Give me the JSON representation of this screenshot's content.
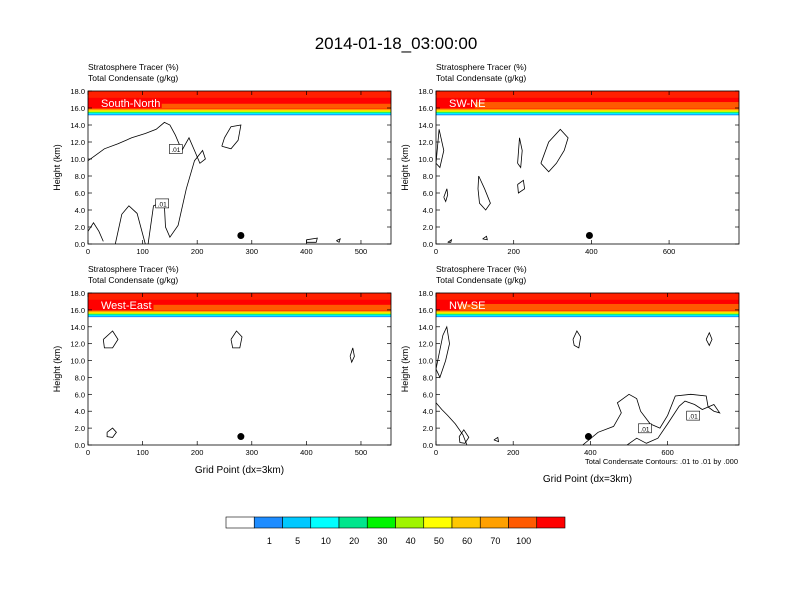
{
  "page": {
    "title": "2014-01-18_03:00:00",
    "footnote": "Total Condensate Contours: .01 to .01 by .000",
    "colors": {
      "background": "#ffffff",
      "contour": "#000000"
    }
  },
  "colorbar": {
    "colors": [
      "#ffffff",
      "#1e8cff",
      "#00c8ff",
      "#00ffff",
      "#00e68c",
      "#00f500",
      "#a0f500",
      "#ffff00",
      "#ffc800",
      "#ffa000",
      "#ff5a00",
      "#ff0000"
    ],
    "labels": [
      "1",
      "5",
      "10",
      "20",
      "30",
      "40",
      "50",
      "60",
      "70",
      "100"
    ]
  },
  "chart_data": [
    {
      "type": "heatmap",
      "label": "South-North",
      "title_left": "Stratosphere Tracer",
      "title_left_unit": "(%)",
      "title_left2": "Total Condensate",
      "title_left2_unit": "(g/kg)",
      "ylabel": "Height (km)",
      "xlabel": "",
      "xlim": [
        0,
        555
      ],
      "ylim": [
        0,
        18
      ],
      "xticks": [
        "0",
        "100",
        "200",
        "300",
        "400",
        "500"
      ],
      "xtick_values": [
        0,
        100,
        200,
        300,
        400,
        500
      ],
      "yticks": [
        "0.0",
        "2.0",
        "4.0",
        "6.0",
        "8.0",
        "10.0",
        "12.0",
        "14.0",
        "16.0",
        "18.0"
      ],
      "tracer_base_km": 15.2,
      "tracer_jump_at": 135,
      "tracer_jump_km": 0.4,
      "marker": {
        "x": 280,
        "y": 1.0
      },
      "contour_labels": [
        {
          "text": ".01",
          "x": 160,
          "y": 11.0
        },
        {
          "text": ".01",
          "x": 135,
          "y": 4.6
        }
      ],
      "contours": [
        [
          [
            0,
            1.5
          ],
          [
            10,
            2.5
          ],
          [
            20,
            1.5
          ],
          [
            28,
            0.3
          ]
        ],
        [
          [
            50,
            0
          ],
          [
            62,
            3.5
          ],
          [
            75,
            4.5
          ],
          [
            90,
            3.6
          ],
          [
            105,
            0
          ]
        ],
        [
          [
            110,
            0
          ],
          [
            120,
            4.5
          ],
          [
            132,
            4.8
          ],
          [
            140,
            4.5
          ],
          [
            142,
            2.0
          ],
          [
            150,
            0.8
          ],
          [
            165,
            2.2
          ],
          [
            180,
            6.5
          ],
          [
            195,
            9.8
          ],
          [
            210,
            11.0
          ],
          [
            215,
            10.0
          ],
          [
            205,
            9.5
          ],
          [
            195,
            11.0
          ],
          [
            185,
            12.5
          ],
          [
            172,
            11.0
          ],
          [
            160,
            12.8
          ],
          [
            150,
            14.0
          ],
          [
            140,
            14.3
          ],
          [
            125,
            13.5
          ],
          [
            105,
            13.0
          ],
          [
            80,
            12.5
          ],
          [
            55,
            11.8
          ],
          [
            30,
            11.2
          ],
          [
            15,
            10.5
          ],
          [
            0,
            9.8
          ]
        ],
        [
          [
            245,
            11.5
          ],
          [
            250,
            12.5
          ],
          [
            262,
            13.8
          ],
          [
            280,
            14.0
          ],
          [
            275,
            12.2
          ],
          [
            262,
            11.2
          ],
          [
            245,
            11.5
          ]
        ],
        [
          [
            400,
            0.5
          ],
          [
            420,
            0.7
          ],
          [
            418,
            0.2
          ],
          [
            400,
            0.2
          ],
          [
            400,
            0.5
          ]
        ],
        [
          [
            455,
            0.4
          ],
          [
            462,
            0.6
          ],
          [
            460,
            0.2
          ],
          [
            455,
            0.4
          ]
        ]
      ]
    },
    {
      "type": "heatmap",
      "label": "SW-NE",
      "title_left": "Stratosphere Tracer",
      "title_left_unit": "(%)",
      "title_left2": "Total Condensate",
      "title_left2_unit": "(g/kg)",
      "ylabel": "Height (km)",
      "xlabel": "",
      "xlim": [
        0,
        780
      ],
      "ylim": [
        0,
        18
      ],
      "xticks": [
        "0",
        "200",
        "400",
        "600"
      ],
      "xtick_values": [
        0,
        200,
        400,
        600
      ],
      "yticks": [
        "0.0",
        "2.0",
        "4.0",
        "6.0",
        "8.0",
        "10.0",
        "12.0",
        "14.0",
        "16.0",
        "18.0"
      ],
      "tracer_base_km": 15.2,
      "tracer_jump_at": 100,
      "tracer_jump_km": 0.6,
      "marker": {
        "x": 395,
        "y": 1.0
      },
      "contour_labels": [],
      "contours": [
        [
          [
            0,
            9.5
          ],
          [
            8,
            13.5
          ],
          [
            20,
            11.0
          ],
          [
            10,
            9.0
          ],
          [
            0,
            9.5
          ]
        ],
        [
          [
            20,
            5.5
          ],
          [
            28,
            6.5
          ],
          [
            30,
            5.8
          ],
          [
            25,
            5.0
          ],
          [
            20,
            5.5
          ]
        ],
        [
          [
            110,
            8.0
          ],
          [
            125,
            6.5
          ],
          [
            140,
            4.8
          ],
          [
            128,
            4.0
          ],
          [
            112,
            4.8
          ],
          [
            108,
            6.5
          ],
          [
            110,
            8.0
          ]
        ],
        [
          [
            210,
            9.5
          ],
          [
            215,
            12.5
          ],
          [
            222,
            11.0
          ],
          [
            218,
            9.0
          ],
          [
            210,
            9.5
          ]
        ],
        [
          [
            210,
            7.0
          ],
          [
            225,
            7.5
          ],
          [
            228,
            6.5
          ],
          [
            212,
            6.0
          ],
          [
            210,
            7.0
          ]
        ],
        [
          [
            270,
            9.5
          ],
          [
            290,
            12.0
          ],
          [
            320,
            13.5
          ],
          [
            340,
            12.5
          ],
          [
            330,
            11.0
          ],
          [
            310,
            9.5
          ],
          [
            290,
            8.5
          ],
          [
            270,
            9.5
          ]
        ],
        [
          [
            120,
            0.6
          ],
          [
            130,
            0.9
          ],
          [
            132,
            0.5
          ],
          [
            120,
            0.6
          ]
        ],
        [
          [
            30,
            0.2
          ],
          [
            40,
            0.5
          ],
          [
            38,
            0.2
          ],
          [
            30,
            0.2
          ]
        ]
      ]
    },
    {
      "type": "heatmap",
      "label": "West-East",
      "title_left": "Stratosphere Tracer",
      "title_left_unit": "(%)",
      "title_left2": "Total Condensate",
      "title_left2_unit": "(g/kg)",
      "ylabel": "Height (km)",
      "xlabel": "Grid Point (dx=3km)",
      "xlim": [
        0,
        555
      ],
      "ylim": [
        0,
        18
      ],
      "xticks": [
        "0",
        "100",
        "200",
        "300",
        "400",
        "500"
      ],
      "xtick_values": [
        0,
        100,
        200,
        300,
        400,
        500
      ],
      "yticks": [
        "0.0",
        "2.0",
        "4.0",
        "6.0",
        "8.0",
        "10.0",
        "12.0",
        "14.0",
        "16.0",
        "18.0"
      ],
      "tracer_base_km": 15.2,
      "tracer_jump_at": 120,
      "tracer_jump_km": 0.5,
      "marker": {
        "x": 280,
        "y": 1.0
      },
      "contour_labels": [],
      "contours": [
        [
          [
            262,
            12.5
          ],
          [
            272,
            13.5
          ],
          [
            282,
            12.8
          ],
          [
            278,
            11.5
          ],
          [
            265,
            11.5
          ],
          [
            262,
            12.5
          ]
        ],
        [
          [
            28,
            12.5
          ],
          [
            45,
            13.5
          ],
          [
            55,
            12.5
          ],
          [
            45,
            11.5
          ],
          [
            30,
            11.5
          ],
          [
            28,
            12.5
          ]
        ],
        [
          [
            480,
            10.5
          ],
          [
            485,
            11.5
          ],
          [
            488,
            10.5
          ],
          [
            483,
            9.8
          ],
          [
            480,
            10.5
          ]
        ],
        [
          [
            35,
            1.5
          ],
          [
            45,
            2.0
          ],
          [
            52,
            1.5
          ],
          [
            45,
            0.9
          ],
          [
            35,
            1.0
          ],
          [
            35,
            1.5
          ]
        ]
      ]
    },
    {
      "type": "heatmap",
      "label": "NW-SE",
      "title_left": "Stratosphere Tracer",
      "title_left_unit": "(%)",
      "title_left2": "Total Condensate",
      "title_left2_unit": "(g/kg)",
      "ylabel": "Height (km)",
      "xlabel": "Grid Point (dx=3km)",
      "xlim": [
        0,
        785
      ],
      "ylim": [
        0,
        18
      ],
      "xticks": [
        "0",
        "200",
        "400",
        "600"
      ],
      "xtick_values": [
        0,
        200,
        400,
        600
      ],
      "yticks": [
        "0.0",
        "2.0",
        "4.0",
        "6.0",
        "8.0",
        "10.0",
        "12.0",
        "14.0",
        "16.0",
        "18.0"
      ],
      "tracer_base_km": 15.2,
      "tracer_jump_at": 60,
      "tracer_jump_km": 0.6,
      "marker": {
        "x": 395,
        "y": 1.0
      },
      "contour_labels": [
        {
          "text": ".01",
          "x": 540,
          "y": 1.8
        },
        {
          "text": ".01",
          "x": 665,
          "y": 3.3
        }
      ],
      "contours": [
        [
          [
            0,
            9.0
          ],
          [
            18,
            13.0
          ],
          [
            28,
            14.0
          ],
          [
            35,
            12.0
          ],
          [
            25,
            10.0
          ],
          [
            10,
            8.0
          ],
          [
            0,
            9.0
          ]
        ],
        [
          [
            0,
            5.0
          ],
          [
            15,
            4.2
          ],
          [
            30,
            3.5
          ],
          [
            50,
            2.5
          ],
          [
            70,
            1.2
          ],
          [
            80,
            0
          ]
        ],
        [
          [
            60,
            1.0
          ],
          [
            72,
            1.8
          ],
          [
            85,
            0.9
          ],
          [
            75,
            0.2
          ],
          [
            62,
            0.3
          ],
          [
            60,
            1.0
          ]
        ],
        [
          [
            150,
            0.6
          ],
          [
            160,
            0.9
          ],
          [
            162,
            0.4
          ],
          [
            150,
            0.6
          ]
        ],
        [
          [
            380,
            0
          ],
          [
            420,
            1.5
          ],
          [
            460,
            2.2
          ],
          [
            480,
            3.8
          ],
          [
            470,
            5.0
          ],
          [
            500,
            6.0
          ],
          [
            520,
            5.5
          ],
          [
            530,
            4.0
          ],
          [
            555,
            2.5
          ],
          [
            580,
            2.0
          ],
          [
            600,
            3.5
          ],
          [
            620,
            5.8
          ],
          [
            660,
            6.0
          ],
          [
            700,
            5.8
          ],
          [
            705,
            4.5
          ],
          [
            720,
            4.0
          ],
          [
            735,
            3.8
          ],
          [
            720,
            4.8
          ],
          [
            690,
            4.2
          ],
          [
            670,
            4.8
          ],
          [
            645,
            5.2
          ],
          [
            630,
            4.6
          ],
          [
            600,
            2.5
          ],
          [
            575,
            0.8
          ],
          [
            545,
            0.2
          ],
          [
            520,
            0.8
          ],
          [
            495,
            0
          ]
        ],
        [
          [
            355,
            12.5
          ],
          [
            365,
            13.5
          ],
          [
            375,
            12.8
          ],
          [
            370,
            11.5
          ],
          [
            358,
            11.8
          ],
          [
            355,
            12.5
          ]
        ],
        [
          [
            700,
            12.5
          ],
          [
            708,
            13.3
          ],
          [
            715,
            12.5
          ],
          [
            708,
            11.8
          ],
          [
            700,
            12.5
          ]
        ]
      ]
    }
  ]
}
